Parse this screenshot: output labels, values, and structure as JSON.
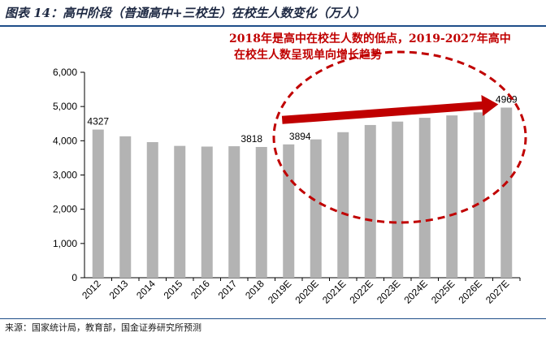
{
  "title": "图表 14：高中阶段（普通高中+三校生）在校生人数变化（万人）",
  "source": "来源：国家统计局，教育部，国金证券研究所预测",
  "annotation": {
    "line1": "2018年是高中在校生人数的低点，2019-2027年高中",
    "line2": "在校生人数呈现单向增长趋势"
  },
  "colors": {
    "bar": "#b3b3b3",
    "annotation": "#c00000",
    "axis": "#000000"
  },
  "chart_data": {
    "type": "bar",
    "categories": [
      "2012",
      "2013",
      "2014",
      "2015",
      "2016",
      "2017",
      "2018",
      "2019E",
      "2020E",
      "2021E",
      "2022E",
      "2023E",
      "2024E",
      "2025E",
      "2026E",
      "2027E"
    ],
    "values": [
      4327,
      4130,
      3960,
      3850,
      3830,
      3840,
      3818,
      3894,
      4040,
      4250,
      4460,
      4560,
      4670,
      4740,
      4830,
      4969
    ],
    "data_labels": {
      "2012": "4327",
      "2018": "3818",
      "2019E": "3894",
      "2027E": "4969"
    },
    "yticks": [
      "0",
      "1,000",
      "2,000",
      "3,000",
      "4,000",
      "5,000",
      "6,000"
    ],
    "ylim": [
      0,
      6000
    ],
    "title": "",
    "xlabel": "",
    "ylabel": "",
    "grid": false,
    "legend": "none"
  }
}
